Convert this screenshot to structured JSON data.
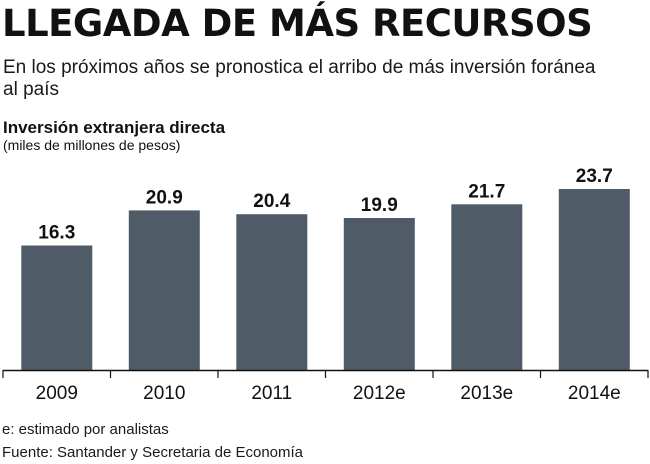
{
  "header": {
    "headline": "LLEGADA DE MÁS RECURSOS",
    "subtitle": "En los próximos años se pronostica el arribo de más inversión foránea al país"
  },
  "footer": {
    "note": "e: estimado por analistas",
    "source": "Fuente: Santander y Secretaria de Economía"
  },
  "colors": {
    "bar": "#4f5c68",
    "axis": "#111111",
    "text": "#111111"
  },
  "chart_data": {
    "type": "bar",
    "title": "Inversión extranjera directa",
    "unit": "(miles de millones de pesos)",
    "categories": [
      "2009",
      "2010",
      "2011",
      "2012e",
      "2013e",
      "2014e"
    ],
    "values": [
      16.3,
      20.9,
      20.4,
      19.9,
      21.7,
      23.7
    ],
    "value_labels": [
      "16.3",
      "20.9",
      "20.4",
      "19.9",
      "21.7",
      "23.7"
    ],
    "xlabel": "",
    "ylabel": "",
    "ylim": [
      0,
      27.5
    ],
    "grid": false
  }
}
